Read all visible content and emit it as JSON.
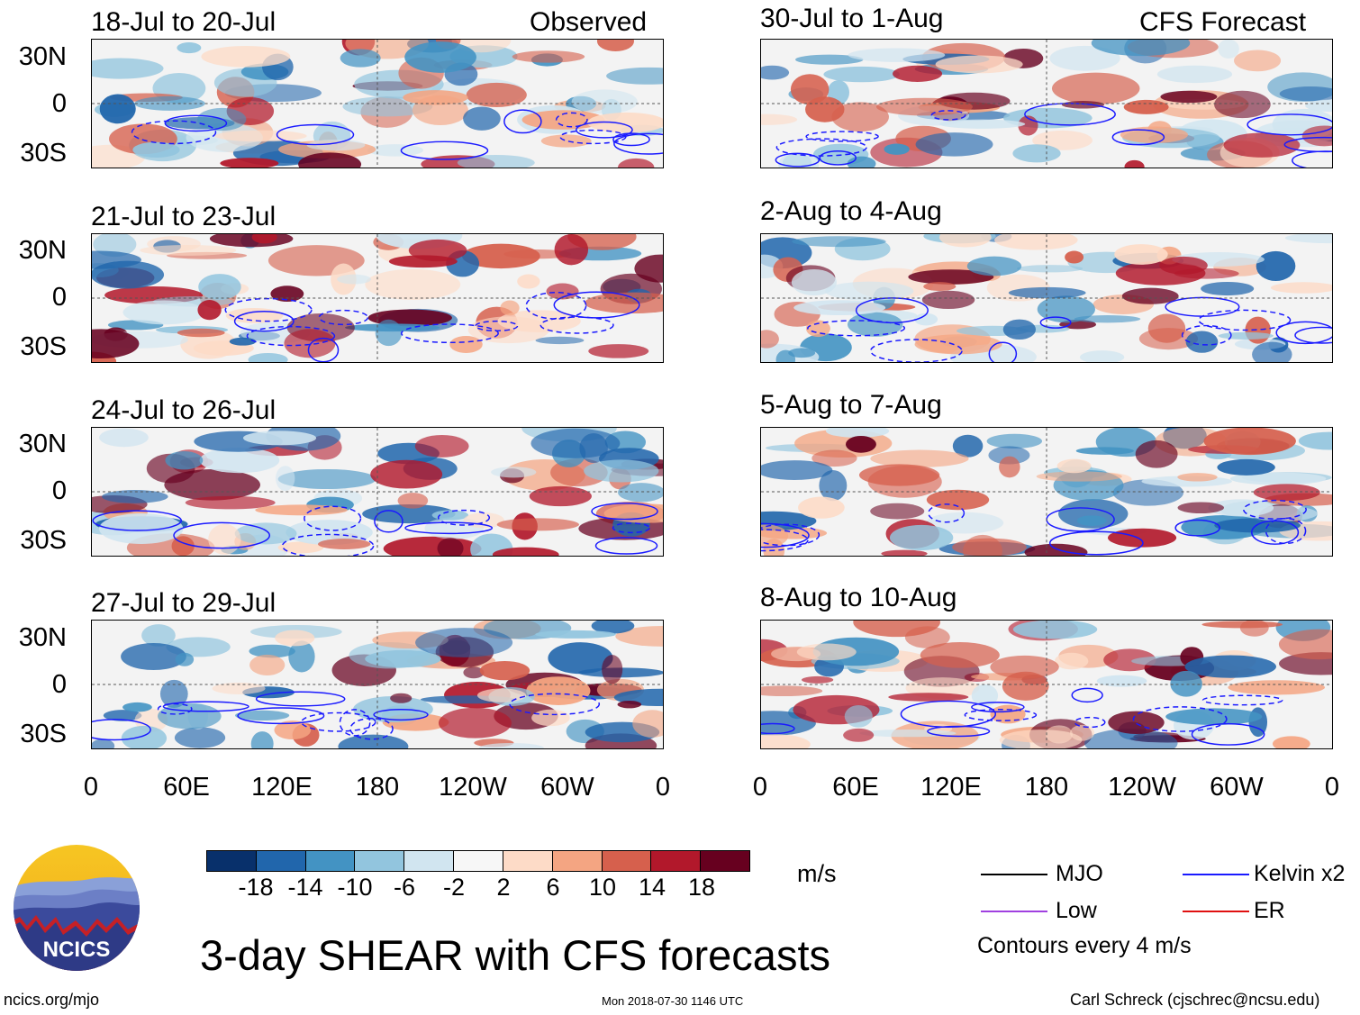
{
  "panels": [
    {
      "title": "18-Jul to 20-Jul",
      "tag": "Observed"
    },
    {
      "title": "21-Jul to 23-Jul",
      "tag": ""
    },
    {
      "title": "24-Jul to 26-Jul",
      "tag": ""
    },
    {
      "title": "27-Jul to 29-Jul",
      "tag": ""
    },
    {
      "title": "30-Jul to 1-Aug",
      "tag": "CFS Forecast"
    },
    {
      "title": "2-Aug to 4-Aug",
      "tag": ""
    },
    {
      "title": "5-Aug to 7-Aug",
      "tag": ""
    },
    {
      "title": "8-Aug to 10-Aug",
      "tag": ""
    }
  ],
  "y_ticks": [
    "30N",
    "0",
    "30S"
  ],
  "x_ticks": [
    "0",
    "60E",
    "120E",
    "180",
    "120W",
    "60W",
    "0"
  ],
  "colorbar": {
    "labels": [
      "-18",
      "-14",
      "-10",
      "-6",
      "-2",
      "2",
      "6",
      "10",
      "14",
      "18"
    ],
    "colors": [
      "#08306b",
      "#2166ac",
      "#4393c3",
      "#92c5de",
      "#d1e5f0",
      "#f7f7f7",
      "#fddbc7",
      "#f4a582",
      "#d6604d",
      "#b2182b",
      "#67001f"
    ],
    "units": "m/s"
  },
  "legend": {
    "mjo": "MJO",
    "kelvin": "Kelvin x2",
    "low": "Low",
    "er": "ER",
    "note": "Contours every 4 m/s",
    "colors": {
      "mjo": "#000000",
      "kelvin": "#1a1aff",
      "low": "#a040e0",
      "er": "#e01010"
    }
  },
  "logo_text": "NCICS",
  "main_title": "3-day SHEAR with CFS forecasts",
  "footer": {
    "left": "ncics.org/mjo",
    "center": "Mon 2018-07-30 1146 UTC",
    "right": "Carl Schreck (cjschrec@ncsu.edu)"
  }
}
